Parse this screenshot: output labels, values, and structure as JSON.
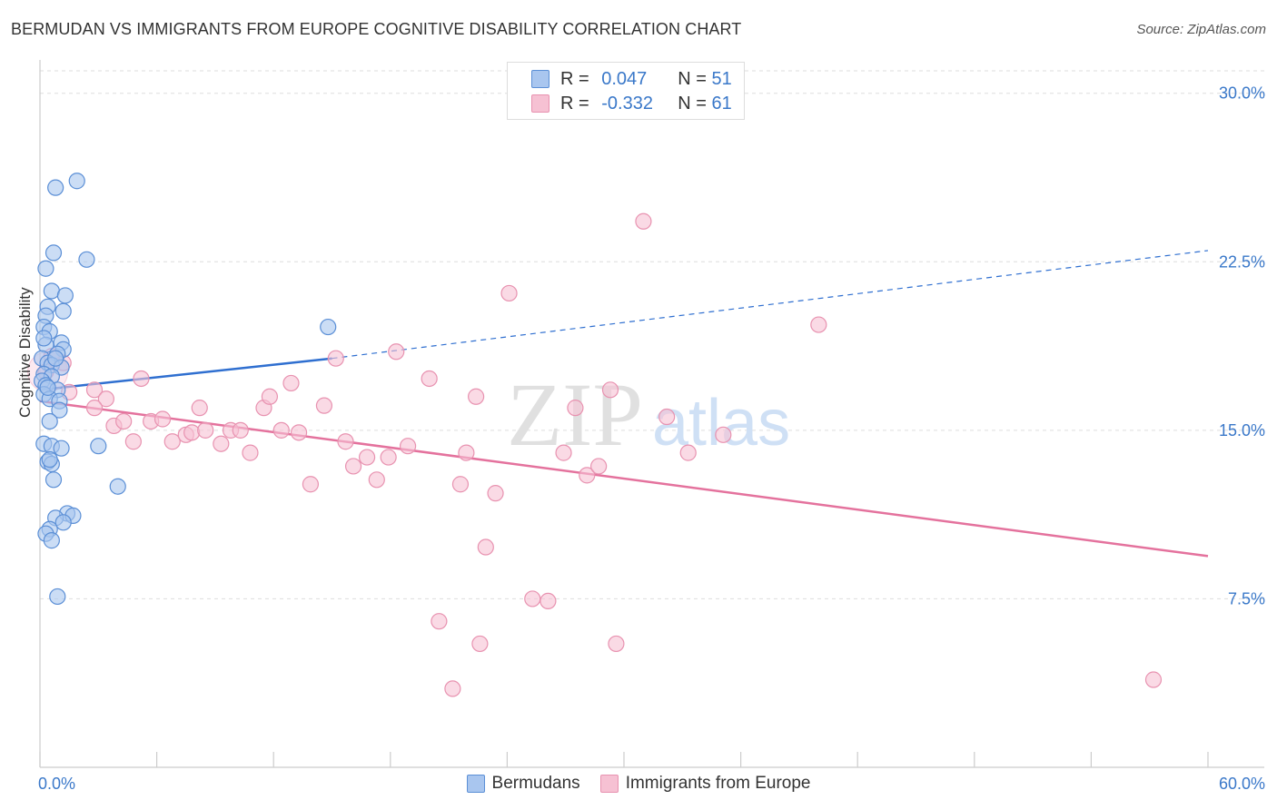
{
  "title": "BERMUDAN VS IMMIGRANTS FROM EUROPE COGNITIVE DISABILITY CORRELATION CHART",
  "source": "Source: ZipAtlas.com",
  "watermark": {
    "zip": "ZIP",
    "atlas": "atlas"
  },
  "legend": {
    "r_label": "R =",
    "n_label": "N =",
    "rows": [
      {
        "series": "Bermudans",
        "r": "0.047",
        "n": "51"
      },
      {
        "series": "Immigrants from Europe",
        "r": "-0.332",
        "n": "61"
      }
    ]
  },
  "colors": {
    "blue_fill": "#a9c6ef",
    "blue_stroke": "#5b8fd6",
    "blue_line": "#2f6fd0",
    "pink_fill": "#f6c1d3",
    "pink_stroke": "#e892b0",
    "pink_line": "#e4729d",
    "tick_text": "#3a78c9",
    "grid": "#dddddd"
  },
  "chart_data": {
    "type": "scatter",
    "title": "BERMUDAN VS IMMIGRANTS FROM EUROPE COGNITIVE DISABILITY CORRELATION CHART",
    "xlabel": "",
    "ylabel": "Cognitive Disability",
    "xlim": [
      0,
      60
    ],
    "ylim": [
      0,
      31
    ],
    "x_tick_labels": {
      "0": "0.0%",
      "60": "60.0%"
    },
    "x_minor_ticks": [
      0,
      6,
      12,
      18,
      24,
      30,
      36,
      42,
      48,
      54,
      60
    ],
    "y_ticks": [
      7.5,
      15,
      22.5,
      30
    ],
    "y_tick_labels": [
      "7.5%",
      "15.0%",
      "22.5%",
      "30.0%"
    ],
    "grid": true,
    "legend_position": "top-center",
    "series": [
      {
        "name": "Bermudans",
        "color": "blue",
        "points": [
          [
            1.9,
            26.1
          ],
          [
            0.8,
            25.8
          ],
          [
            0.7,
            22.9
          ],
          [
            2.4,
            22.6
          ],
          [
            0.3,
            22.2
          ],
          [
            0.6,
            21.2
          ],
          [
            1.3,
            21.0
          ],
          [
            0.4,
            20.5
          ],
          [
            1.2,
            20.3
          ],
          [
            0.3,
            20.1
          ],
          [
            0.2,
            19.6
          ],
          [
            0.5,
            19.4
          ],
          [
            1.1,
            18.9
          ],
          [
            0.3,
            18.8
          ],
          [
            1.2,
            18.6
          ],
          [
            0.9,
            18.4
          ],
          [
            0.1,
            18.2
          ],
          [
            0.4,
            18.0
          ],
          [
            0.6,
            17.9
          ],
          [
            1.1,
            17.8
          ],
          [
            0.2,
            17.5
          ],
          [
            0.6,
            17.4
          ],
          [
            0.1,
            17.2
          ],
          [
            0.3,
            17.0
          ],
          [
            0.9,
            16.8
          ],
          [
            0.2,
            16.6
          ],
          [
            0.5,
            16.4
          ],
          [
            1.0,
            16.3
          ],
          [
            1.0,
            15.9
          ],
          [
            0.5,
            15.4
          ],
          [
            0.2,
            14.4
          ],
          [
            0.6,
            14.3
          ],
          [
            1.1,
            14.2
          ],
          [
            3.0,
            14.3
          ],
          [
            0.4,
            13.6
          ],
          [
            0.6,
            13.5
          ],
          [
            0.7,
            12.8
          ],
          [
            4.0,
            12.5
          ],
          [
            1.4,
            11.3
          ],
          [
            1.7,
            11.2
          ],
          [
            0.8,
            11.1
          ],
          [
            1.2,
            10.9
          ],
          [
            0.5,
            10.6
          ],
          [
            0.3,
            10.4
          ],
          [
            0.6,
            10.1
          ],
          [
            0.9,
            7.6
          ],
          [
            14.8,
            19.6
          ],
          [
            0.2,
            19.1
          ],
          [
            0.8,
            18.2
          ],
          [
            0.4,
            16.9
          ],
          [
            0.5,
            13.7
          ]
        ],
        "trend": {
          "x1": 0,
          "y1": 16.8,
          "x2": 15,
          "y2": 18.2,
          "dashed_to_x": 60,
          "dashed_to_y": 23.0
        }
      },
      {
        "name": "Immigrants from Europe",
        "color": "pink",
        "points": [
          [
            0.3,
            17.6
          ],
          [
            1.2,
            18.0
          ],
          [
            1.5,
            16.7
          ],
          [
            0.6,
            18.3
          ],
          [
            2.8,
            16.8
          ],
          [
            3.4,
            16.4
          ],
          [
            2.8,
            16.0
          ],
          [
            5.2,
            17.3
          ],
          [
            3.8,
            15.2
          ],
          [
            4.3,
            15.4
          ],
          [
            5.7,
            15.4
          ],
          [
            6.3,
            15.5
          ],
          [
            4.8,
            14.5
          ],
          [
            6.8,
            14.5
          ],
          [
            7.5,
            14.8
          ],
          [
            7.8,
            14.9
          ],
          [
            8.5,
            15.0
          ],
          [
            8.2,
            16.0
          ],
          [
            9.3,
            14.4
          ],
          [
            9.8,
            15.0
          ],
          [
            10.3,
            15.0
          ],
          [
            10.8,
            14.0
          ],
          [
            11.5,
            16.0
          ],
          [
            11.8,
            16.5
          ],
          [
            12.4,
            15.0
          ],
          [
            12.9,
            17.1
          ],
          [
            13.3,
            14.9
          ],
          [
            13.9,
            12.6
          ],
          [
            14.6,
            16.1
          ],
          [
            15.2,
            18.2
          ],
          [
            15.7,
            14.5
          ],
          [
            16.1,
            13.4
          ],
          [
            16.8,
            13.8
          ],
          [
            17.3,
            12.8
          ],
          [
            17.9,
            13.8
          ],
          [
            18.3,
            18.5
          ],
          [
            18.9,
            14.3
          ],
          [
            20.0,
            17.3
          ],
          [
            20.5,
            6.5
          ],
          [
            21.2,
            3.5
          ],
          [
            21.6,
            12.6
          ],
          [
            21.9,
            14.0
          ],
          [
            22.4,
            16.5
          ],
          [
            22.6,
            5.5
          ],
          [
            22.9,
            9.8
          ],
          [
            23.4,
            12.2
          ],
          [
            24.1,
            21.1
          ],
          [
            25.3,
            7.5
          ],
          [
            26.1,
            7.4
          ],
          [
            26.9,
            14.0
          ],
          [
            27.5,
            16.0
          ],
          [
            28.1,
            13.0
          ],
          [
            28.7,
            13.4
          ],
          [
            29.3,
            16.8
          ],
          [
            29.6,
            5.5
          ],
          [
            31.0,
            24.3
          ],
          [
            32.2,
            15.6
          ],
          [
            33.3,
            14.0
          ],
          [
            35.1,
            14.8
          ],
          [
            40.0,
            19.7
          ],
          [
            57.2,
            3.9
          ]
        ],
        "trend": {
          "x1": 0,
          "y1": 16.3,
          "x2": 60,
          "y2": 9.4
        }
      }
    ]
  }
}
